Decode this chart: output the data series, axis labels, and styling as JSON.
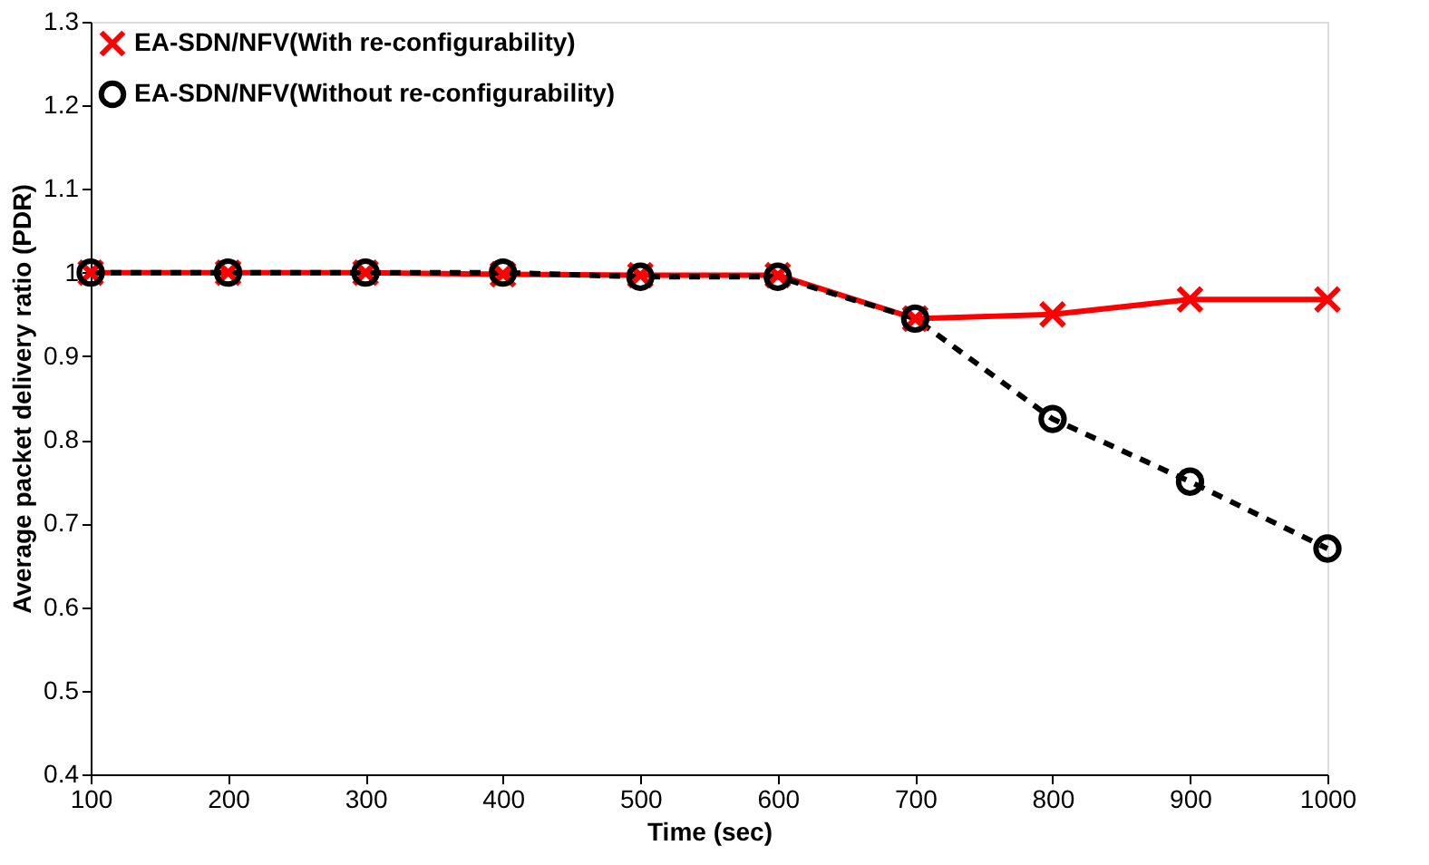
{
  "chart_data": {
    "type": "line",
    "xlabel": "Time (sec)",
    "ylabel": "Average packet delivery ratio (PDR)",
    "x": [
      100,
      200,
      300,
      400,
      500,
      600,
      700,
      800,
      900,
      1000
    ],
    "series": [
      {
        "name": "EA-SDN/NFV(With re-configurability)",
        "color": "#ff0000",
        "values": [
          1.0,
          1.0,
          1.0,
          0.998,
          0.997,
          0.997,
          0.945,
          0.95,
          0.968,
          0.968
        ],
        "marker": "cross",
        "line_style": "solid"
      },
      {
        "name": "EA-SDN/NFV(Without re-configurability)",
        "color": "#000000",
        "values": [
          1.0,
          1.0,
          1.0,
          1.0,
          0.995,
          0.995,
          0.945,
          0.825,
          0.75,
          0.67
        ],
        "marker": "circle",
        "line_style": "dashed"
      }
    ],
    "xlim": [
      100,
      1000
    ],
    "xticks": [
      100,
      200,
      300,
      400,
      500,
      600,
      700,
      800,
      900,
      1000
    ],
    "ylim": [
      0.4,
      1.3
    ],
    "yticks": [
      0.4,
      0.5,
      0.6,
      0.7,
      0.8,
      0.9,
      1,
      1.1,
      1.2,
      1.3
    ],
    "grid": false,
    "legend": "top left"
  }
}
